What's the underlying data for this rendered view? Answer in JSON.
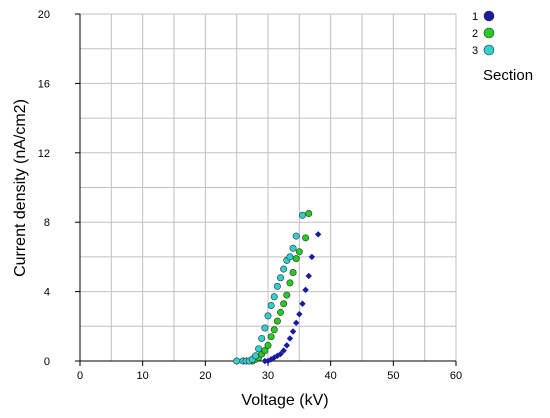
{
  "chart_data": {
    "type": "scatter",
    "title": "",
    "xlabel": "Voltage (kV)",
    "ylabel": "Current density (nA/cm2)",
    "xlim": [
      0,
      60
    ],
    "ylim": [
      0,
      20
    ],
    "x_ticks": [
      0,
      10,
      20,
      30,
      40,
      50,
      60
    ],
    "y_ticks": [
      0,
      4,
      8,
      12,
      16,
      20
    ],
    "x_tick_labels": [
      "0",
      "10",
      "20",
      "30",
      "40",
      "50",
      "60"
    ],
    "y_tick_labels": [
      "0",
      "4",
      "8",
      "12",
      "16",
      "20"
    ],
    "grid": true,
    "legend": {
      "title": "Section",
      "placement": "right"
    },
    "series": [
      {
        "name": "1",
        "color": "#1a1aa0",
        "points": [
          [
            29.5,
            0.0
          ],
          [
            30.0,
            0.0
          ],
          [
            30.5,
            0.1
          ],
          [
            31.0,
            0.2
          ],
          [
            31.5,
            0.3
          ],
          [
            32.0,
            0.4
          ],
          [
            32.5,
            0.6
          ],
          [
            33.0,
            0.9
          ],
          [
            33.5,
            1.3
          ],
          [
            34.0,
            1.7
          ],
          [
            34.5,
            2.2
          ],
          [
            35.0,
            2.7
          ],
          [
            35.5,
            3.3
          ],
          [
            36.0,
            4.1
          ],
          [
            36.5,
            4.9
          ],
          [
            37.0,
            6.0
          ],
          [
            38.0,
            7.3
          ]
        ]
      },
      {
        "name": "2",
        "color": "#22cc22",
        "points": [
          [
            27.5,
            0.0
          ],
          [
            28.0,
            0.1
          ],
          [
            28.5,
            0.2
          ],
          [
            29.0,
            0.4
          ],
          [
            29.5,
            0.6
          ],
          [
            30.0,
            0.9
          ],
          [
            30.5,
            1.4
          ],
          [
            31.0,
            1.8
          ],
          [
            31.5,
            2.3
          ],
          [
            32.0,
            2.8
          ],
          [
            32.5,
            3.3
          ],
          [
            33.0,
            3.8
          ],
          [
            33.5,
            4.5
          ],
          [
            34.0,
            5.1
          ],
          [
            34.5,
            5.9
          ],
          [
            35.0,
            6.3
          ],
          [
            36.0,
            7.1
          ],
          [
            36.5,
            8.5
          ]
        ]
      },
      {
        "name": "3",
        "color": "#2ed0d0",
        "points": [
          [
            25.0,
            0.0
          ],
          [
            26.0,
            0.0
          ],
          [
            26.5,
            0.0
          ],
          [
            27.0,
            0.0
          ],
          [
            27.5,
            0.1
          ],
          [
            28.0,
            0.3
          ],
          [
            28.5,
            0.7
          ],
          [
            29.0,
            1.3
          ],
          [
            29.5,
            1.9
          ],
          [
            30.0,
            2.6
          ],
          [
            30.5,
            3.2
          ],
          [
            31.0,
            3.7
          ],
          [
            31.5,
            4.3
          ],
          [
            32.0,
            4.8
          ],
          [
            32.5,
            5.3
          ],
          [
            33.0,
            5.8
          ],
          [
            33.5,
            6.0
          ],
          [
            34.0,
            6.5
          ],
          [
            34.5,
            7.2
          ],
          [
            35.5,
            8.4
          ]
        ]
      }
    ]
  }
}
